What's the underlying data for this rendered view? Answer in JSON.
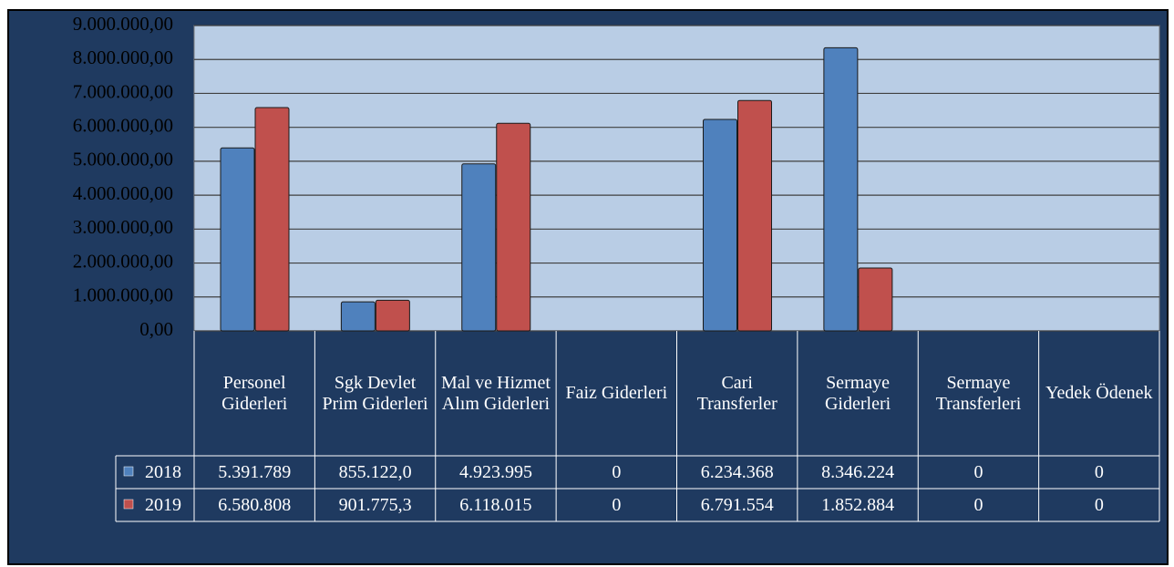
{
  "chart_data": {
    "type": "bar",
    "categories": [
      "Personel Giderleri",
      "Sgk Devlet Prim Giderleri",
      "Mal ve Hizmet Alım Giderleri",
      "Faiz Giderleri",
      "Cari Transferler",
      "Sermaye Giderleri",
      "Sermaye Transferleri",
      "Yedek Ödenek"
    ],
    "series": [
      {
        "name": "2018",
        "color": "#4f81bd",
        "values": [
          5391789,
          855122.0,
          4923995,
          0,
          6234368,
          8346224,
          0,
          0
        ],
        "value_labels": [
          "5.391.789",
          "855.122,0",
          "4.923.995",
          "0",
          "6.234.368",
          "8.346.224",
          "0",
          "0"
        ]
      },
      {
        "name": "2019",
        "color": "#c0504d",
        "values": [
          6580808,
          901775.3,
          6118015,
          0,
          6791554,
          1852884,
          0,
          0
        ],
        "value_labels": [
          "6.580.808",
          "901.775,3",
          "6.118.015",
          "0",
          "6.791.554",
          "1.852.884",
          "0",
          "0"
        ]
      }
    ],
    "ylim": [
      0,
      9000000
    ],
    "yticks": [
      {
        "value": 0,
        "label": "0,00"
      },
      {
        "value": 1000000,
        "label": "1.000.000,00"
      },
      {
        "value": 2000000,
        "label": "2.000.000,00"
      },
      {
        "value": 3000000,
        "label": "3.000.000,00"
      },
      {
        "value": 4000000,
        "label": "4.000.000,00"
      },
      {
        "value": 5000000,
        "label": "5.000.000,00"
      },
      {
        "value": 6000000,
        "label": "6.000.000,00"
      },
      {
        "value": 7000000,
        "label": "7.000.000,00"
      },
      {
        "value": 8000000,
        "label": "8.000.000,00"
      },
      {
        "value": 9000000,
        "label": "9.000.000,00"
      }
    ],
    "grid": true,
    "legend": "data-table"
  }
}
